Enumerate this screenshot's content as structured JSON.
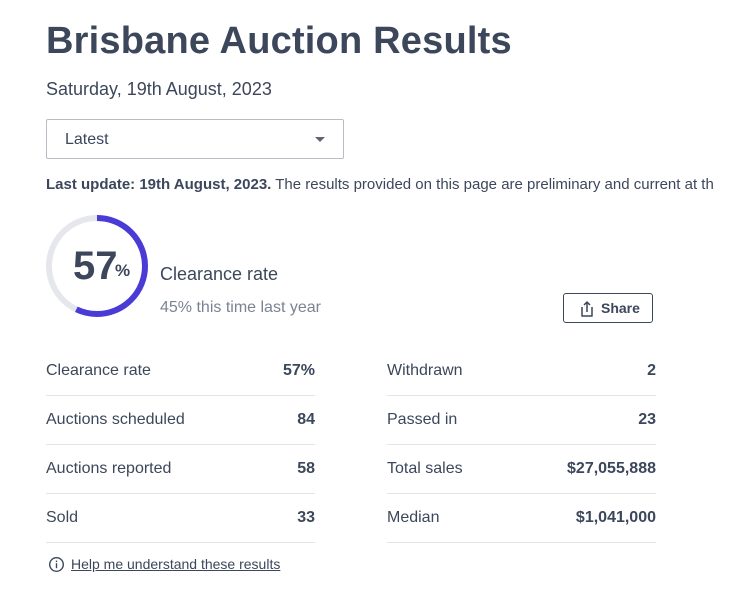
{
  "page": {
    "title": "Brisbane Auction Results",
    "date": "Saturday, 19th August, 2023"
  },
  "filter": {
    "selected": "Latest"
  },
  "update": {
    "label": "Last update: 19th August, 2023.",
    "text": " The results provided on this page are preliminary and current at th"
  },
  "clearance": {
    "rate_number": "57",
    "rate_symbol": "%",
    "rate_fraction": 0.57,
    "label": "Clearance rate",
    "last_year": "45% this time last year",
    "accent_color": "#4a3bd6",
    "track_color": "#e5e7ec"
  },
  "share": {
    "label": "Share",
    "icon": "share-icon"
  },
  "stats": {
    "left": [
      {
        "label": "Clearance rate",
        "value": "57%"
      },
      {
        "label": "Auctions scheduled",
        "value": "84"
      },
      {
        "label": "Auctions reported",
        "value": "58"
      },
      {
        "label": "Sold",
        "value": "33"
      }
    ],
    "right": [
      {
        "label": "Withdrawn",
        "value": "2"
      },
      {
        "label": "Passed in",
        "value": "23"
      },
      {
        "label": "Total sales",
        "value": "$27,055,888"
      },
      {
        "label": "Median",
        "value": "$1,041,000"
      }
    ]
  },
  "help": {
    "label": "Help me understand these results",
    "icon": "info-icon"
  }
}
